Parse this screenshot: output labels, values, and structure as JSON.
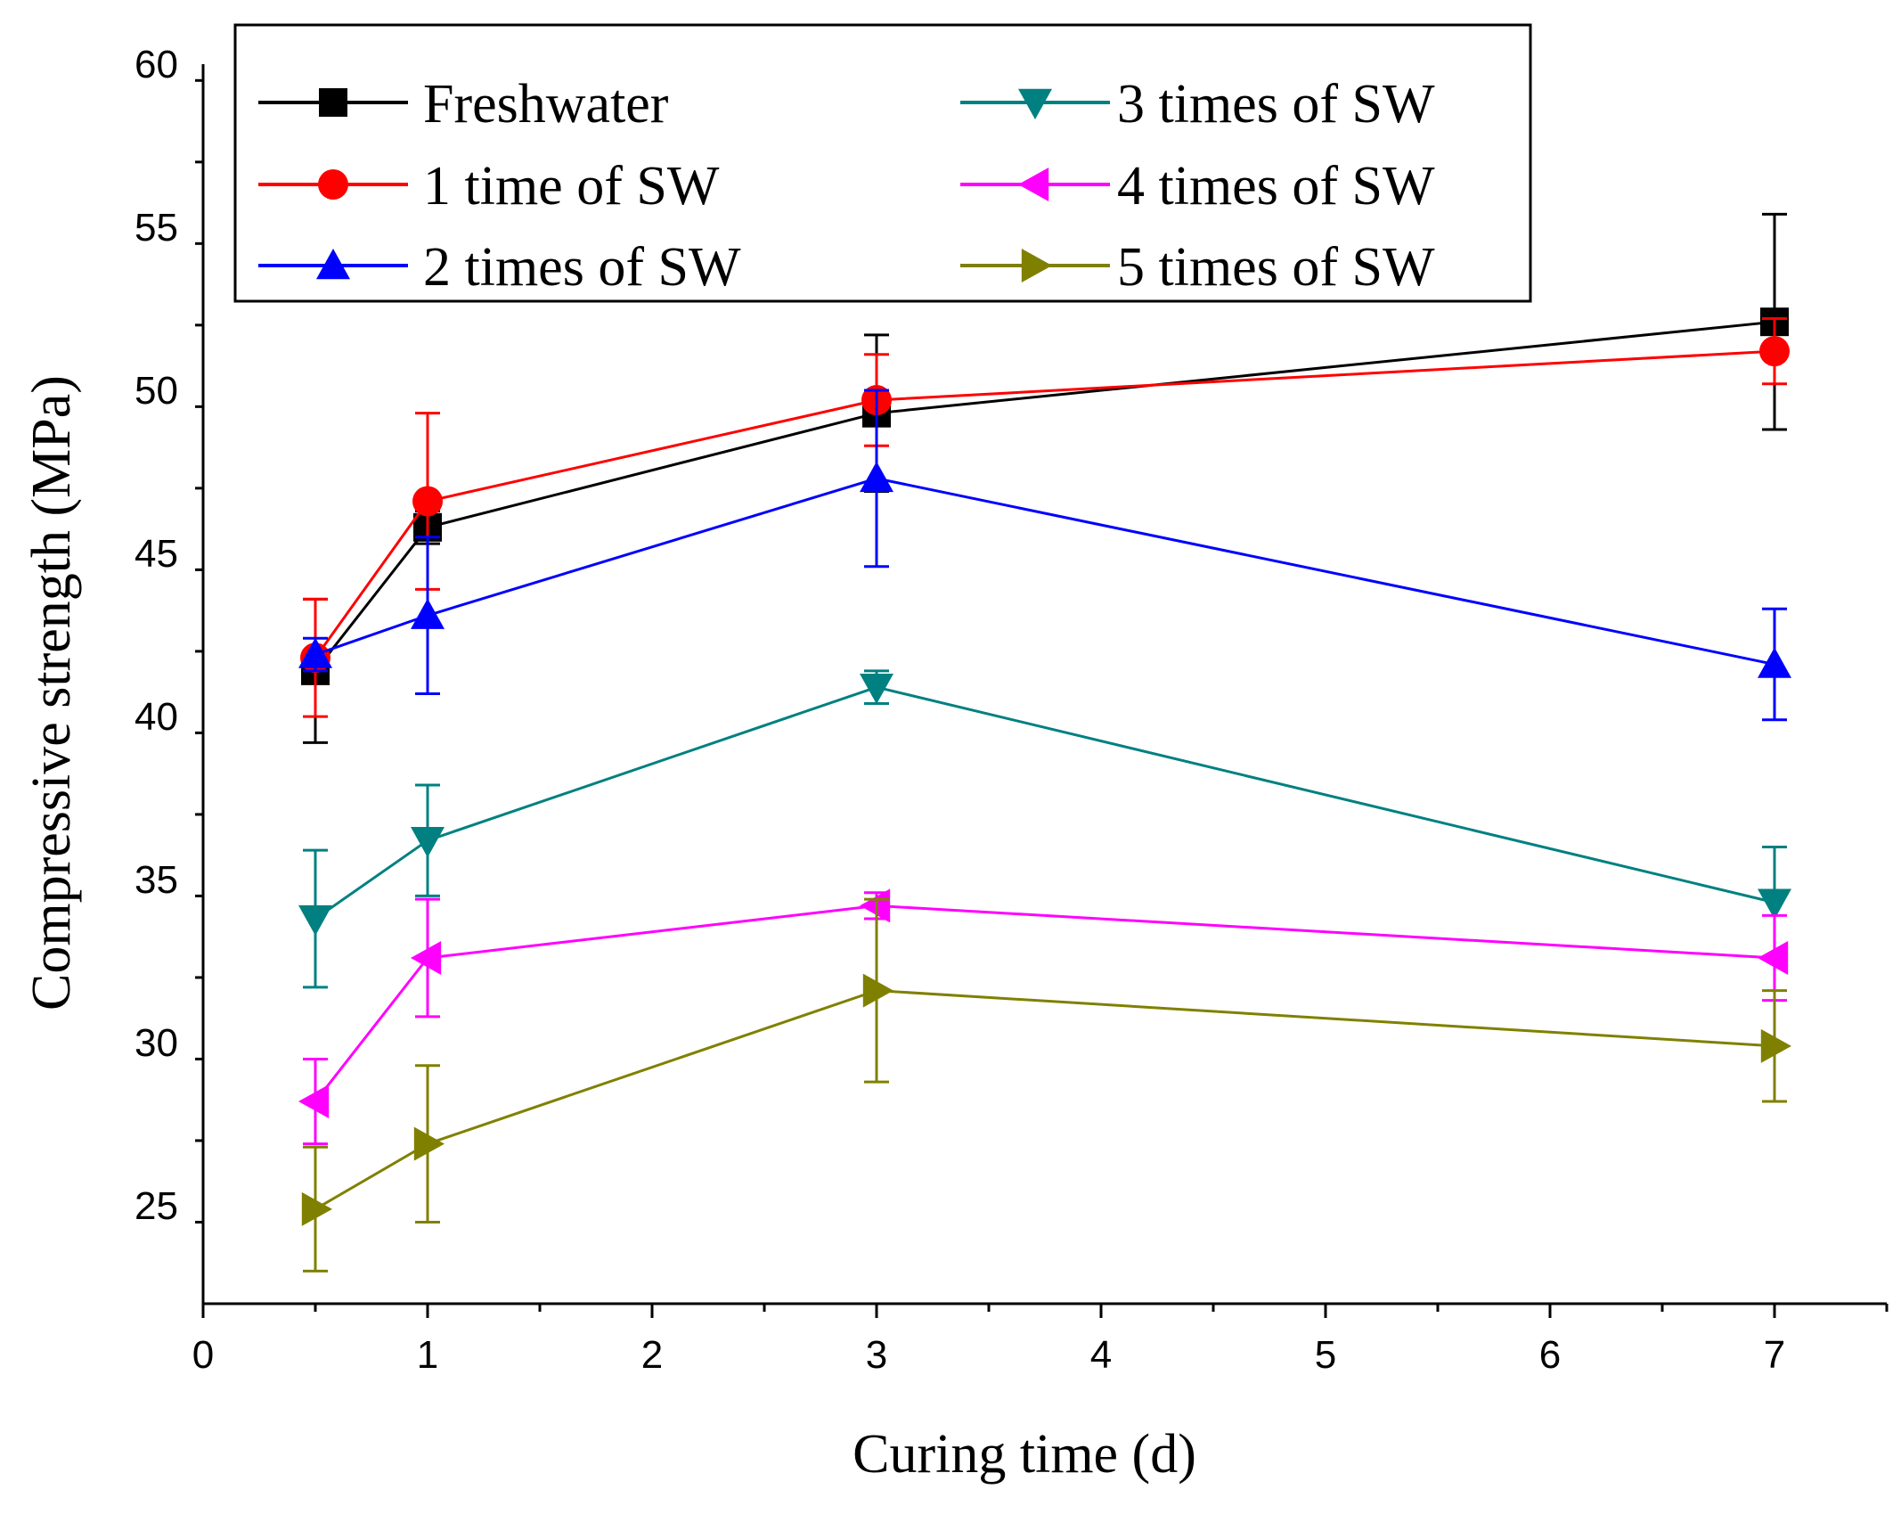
{
  "chart_data": {
    "type": "line",
    "xlabel": "Curing time (d)",
    "ylabel": "Compressive strength (MPa)",
    "xlim": [
      0,
      7.5
    ],
    "ylim": [
      22,
      60
    ],
    "xticks": [
      0,
      1,
      2,
      3,
      4,
      5,
      6,
      7
    ],
    "yticks": [
      25,
      30,
      35,
      40,
      45,
      50,
      55,
      60
    ],
    "legend_position": "top",
    "grid": false,
    "series": [
      {
        "name": "Freshwater",
        "color": "#000000",
        "marker": "square",
        "x": [
          0.5,
          1,
          3,
          7
        ],
        "values": [
          41.4,
          45.8,
          49.3,
          52.1
        ],
        "errors": [
          2.2,
          0.5,
          2.4,
          3.3
        ]
      },
      {
        "name": "1 time of SW",
        "color": "#ff0000",
        "marker": "circle",
        "x": [
          0.5,
          1,
          3,
          7
        ],
        "values": [
          41.8,
          46.6,
          49.7,
          51.2
        ],
        "errors": [
          1.8,
          2.7,
          1.4,
          1.0
        ]
      },
      {
        "name": "2 times of SW",
        "color": "#0000ff",
        "marker": "triangle-up",
        "x": [
          0.5,
          1,
          3,
          7
        ],
        "values": [
          41.9,
          43.1,
          47.3,
          41.6
        ],
        "errors": [
          0.5,
          2.4,
          2.7,
          1.7
        ]
      },
      {
        "name": "3 times of SW",
        "color": "#008080",
        "marker": "triangle-down",
        "x": [
          0.5,
          1,
          3,
          7
        ],
        "values": [
          33.8,
          36.2,
          40.9,
          34.3
        ],
        "errors": [
          2.1,
          1.7,
          0.5,
          1.7
        ]
      },
      {
        "name": "4 times of SW",
        "color": "#ff00ff",
        "marker": "triangle-left",
        "x": [
          0.5,
          1,
          3,
          7
        ],
        "values": [
          28.2,
          32.6,
          34.2,
          32.6
        ],
        "errors": [
          1.3,
          1.8,
          0.4,
          1.3
        ]
      },
      {
        "name": "5 times of SW",
        "color": "#808000",
        "marker": "triangle-right",
        "x": [
          0.5,
          1,
          3,
          7
        ],
        "values": [
          24.9,
          26.9,
          31.6,
          29.9
        ],
        "errors": [
          1.9,
          2.4,
          2.8,
          1.7
        ]
      }
    ]
  }
}
